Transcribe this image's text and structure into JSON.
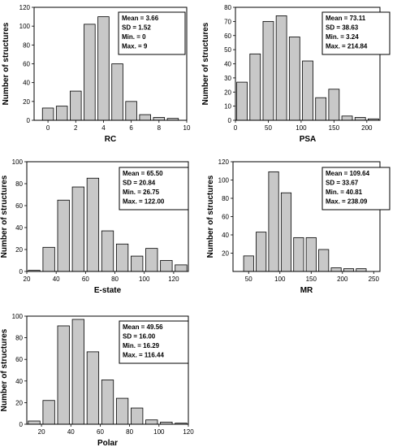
{
  "chart_data": [
    {
      "type": "bar",
      "xlabel": "RC",
      "ylabel": "Number of structures",
      "x": [
        0,
        1,
        2,
        3,
        4,
        5,
        6,
        7,
        8,
        9
      ],
      "values": [
        13,
        15,
        31,
        102,
        110,
        60,
        20,
        6,
        3,
        2
      ],
      "xlim": [
        -1,
        10
      ],
      "ylim": [
        0,
        120
      ],
      "xticks": [
        0,
        2,
        4,
        6,
        8,
        10
      ],
      "yticks": [
        0,
        20,
        40,
        60,
        80,
        100,
        120
      ],
      "stats": [
        "Mean = 3.66",
        "SD = 1.52",
        "Min.  = 0",
        "Max. = 9"
      ]
    },
    {
      "type": "bar",
      "xlabel": "PSA",
      "ylabel": "Number of structures",
      "x": [
        10,
        30,
        50,
        70,
        90,
        110,
        130,
        150,
        170,
        190,
        210
      ],
      "values": [
        27,
        47,
        70,
        74,
        59,
        42,
        16,
        22,
        3,
        2,
        1
      ],
      "xlim": [
        0,
        220
      ],
      "ylim": [
        0,
        80
      ],
      "xticks": [
        0,
        50,
        100,
        150,
        200
      ],
      "yticks": [
        0,
        10,
        20,
        30,
        40,
        50,
        60,
        70,
        80
      ],
      "stats": [
        "Mean = 73.11",
        "SD = 38.63",
        "Min.  = 3.24",
        "Max. = 214.84"
      ]
    },
    {
      "type": "bar",
      "xlabel": "E-state",
      "ylabel": "Number of structures",
      "x": [
        25,
        35,
        45,
        55,
        65,
        75,
        85,
        95,
        105,
        115,
        125
      ],
      "values": [
        1,
        22,
        65,
        77,
        85,
        37,
        25,
        14,
        21,
        10,
        6
      ],
      "xlim": [
        20,
        130
      ],
      "ylim": [
        0,
        100
      ],
      "xticks": [
        20,
        40,
        60,
        80,
        100,
        120
      ],
      "yticks": [
        0,
        20,
        40,
        60,
        80,
        100
      ],
      "stats": [
        "Mean = 65.50",
        "SD = 20.84",
        "Min.  = 26.75",
        "Max. = 122.00"
      ]
    },
    {
      "type": "bar",
      "xlabel": "MR",
      "ylabel": "Number of structures",
      "x": [
        50,
        70,
        90,
        110,
        130,
        150,
        170,
        190,
        210,
        230
      ],
      "values": [
        17,
        43,
        109,
        86,
        37,
        37,
        24,
        4,
        3,
        3
      ],
      "xlim": [
        25,
        260
      ],
      "ylim": [
        0,
        120
      ],
      "xticks": [
        50,
        100,
        150,
        200,
        250
      ],
      "yticks": [
        20,
        40,
        60,
        80,
        100,
        120
      ],
      "stats": [
        "Mean = 109.64",
        "SD = 33.67",
        "Min.  = 40.81",
        "Max. = 238.09"
      ]
    },
    {
      "type": "bar",
      "xlabel": "Polar",
      "ylabel": "Number of structures",
      "x": [
        15,
        25,
        35,
        45,
        55,
        65,
        75,
        85,
        95,
        105,
        115
      ],
      "values": [
        3,
        22,
        91,
        97,
        67,
        41,
        24,
        15,
        4,
        2,
        1
      ],
      "xlim": [
        10,
        120
      ],
      "ylim": [
        0,
        100
      ],
      "xticks": [
        20,
        40,
        60,
        80,
        100,
        120
      ],
      "yticks": [
        0,
        20,
        40,
        60,
        80,
        100
      ],
      "stats": [
        "Mean = 49.56",
        "SD = 16.00",
        "Min.  = 16.29",
        "Max. = 116.44"
      ]
    }
  ]
}
